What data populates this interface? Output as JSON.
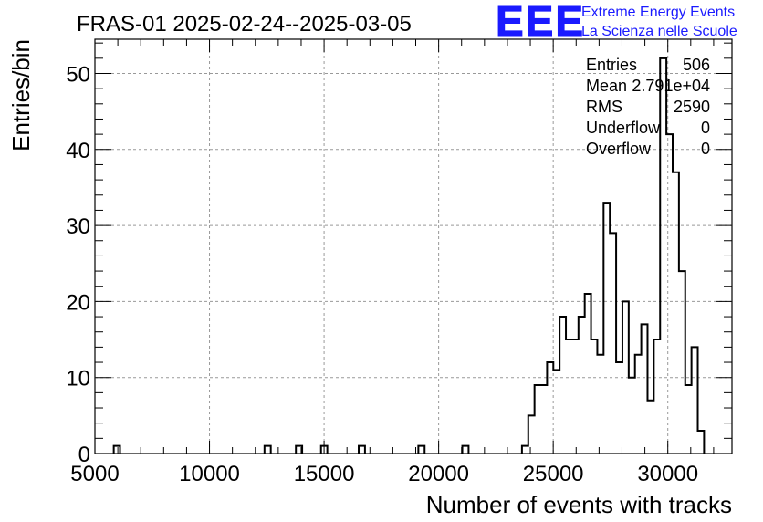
{
  "title": "FRAS-01 2025-02-24--2025-03-05",
  "logo": {
    "letters": "EEE",
    "line1": "Extreme Energy Events",
    "line2": "La Scienza nelle Scuole",
    "color": "#1a1aff"
  },
  "stats": {
    "entries_label": "Entries",
    "entries_value": "506",
    "mean_label": "Mean",
    "mean_value": "2.791e+04",
    "rms_label": "RMS",
    "rms_value": "2590",
    "underflow_label": "Underflow",
    "underflow_value": "0",
    "overflow_label": "Overflow",
    "overflow_value": "0"
  },
  "chart_data": {
    "type": "histogram",
    "title": "FRAS-01 2025-02-24--2025-03-05",
    "xlabel": "Number of events with tracks",
    "ylabel": "Entries/bin",
    "xlim": [
      5000,
      32800
    ],
    "ylim": [
      0,
      54.5
    ],
    "grid": true,
    "line_color": "#000000",
    "x_ticks": [
      5000,
      10000,
      15000,
      20000,
      25000,
      30000
    ],
    "x_tick_labels": [
      "5000",
      "10000",
      "15000",
      "20000",
      "25000",
      "30000"
    ],
    "y_ticks": [
      0,
      10,
      20,
      30,
      40,
      50
    ],
    "y_tick_labels": [
      "0",
      "10",
      "20",
      "30",
      "40",
      "50"
    ],
    "bin_width": 274,
    "bins": [
      {
        "x": 5822,
        "count": 1
      },
      {
        "x": 12400,
        "count": 1
      },
      {
        "x": 13770,
        "count": 1
      },
      {
        "x": 14867,
        "count": 1
      },
      {
        "x": 16511,
        "count": 1
      },
      {
        "x": 19114,
        "count": 1
      },
      {
        "x": 21032,
        "count": 1
      },
      {
        "x": 23635,
        "count": 1
      },
      {
        "x": 23909,
        "count": 5
      },
      {
        "x": 24183,
        "count": 9
      },
      {
        "x": 24457,
        "count": 9
      },
      {
        "x": 24731,
        "count": 12
      },
      {
        "x": 25005,
        "count": 11
      },
      {
        "x": 25279,
        "count": 18
      },
      {
        "x": 25553,
        "count": 15
      },
      {
        "x": 25827,
        "count": 15
      },
      {
        "x": 26101,
        "count": 18
      },
      {
        "x": 26375,
        "count": 21
      },
      {
        "x": 26649,
        "count": 15
      },
      {
        "x": 26923,
        "count": 13
      },
      {
        "x": 27197,
        "count": 33
      },
      {
        "x": 27471,
        "count": 29
      },
      {
        "x": 27745,
        "count": 12
      },
      {
        "x": 28019,
        "count": 20
      },
      {
        "x": 28293,
        "count": 10
      },
      {
        "x": 28567,
        "count": 13
      },
      {
        "x": 28841,
        "count": 17
      },
      {
        "x": 29115,
        "count": 7
      },
      {
        "x": 29389,
        "count": 15
      },
      {
        "x": 29663,
        "count": 52
      },
      {
        "x": 29937,
        "count": 42
      },
      {
        "x": 30211,
        "count": 37
      },
      {
        "x": 30485,
        "count": 24
      },
      {
        "x": 30759,
        "count": 9
      },
      {
        "x": 31033,
        "count": 14
      },
      {
        "x": 31307,
        "count": 3
      }
    ]
  }
}
